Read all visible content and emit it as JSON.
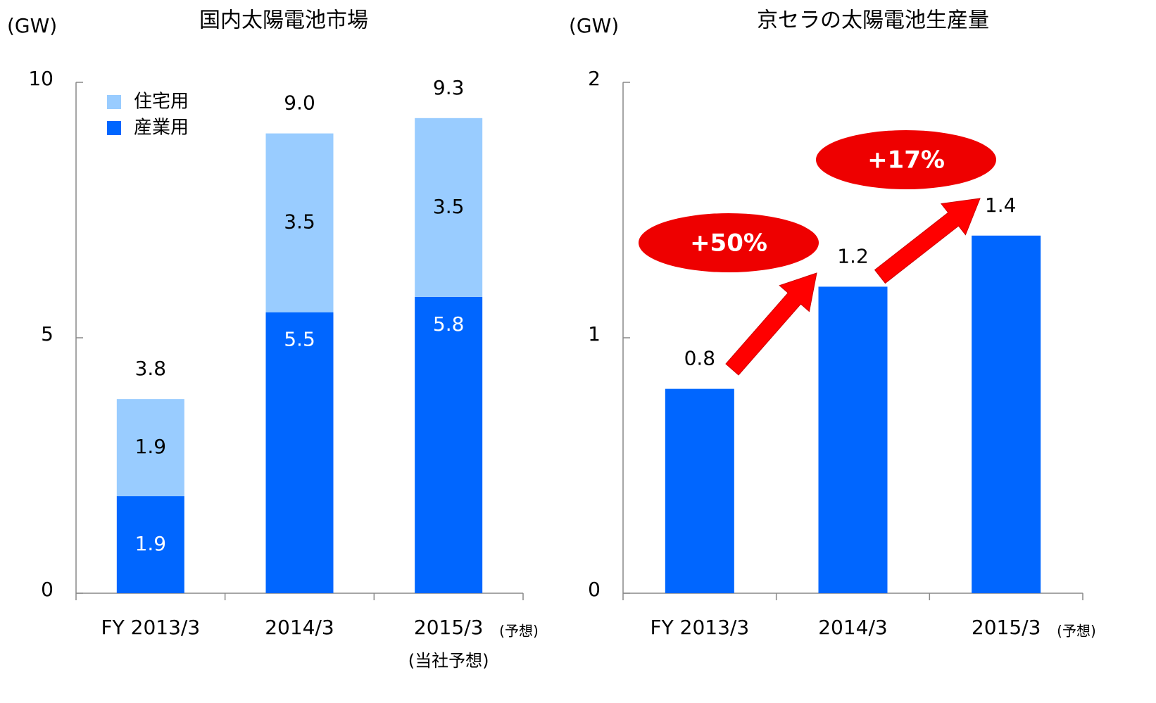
{
  "chart_data": [
    {
      "type": "stacked_bar",
      "title": "国内太陽電池市場",
      "unit_label": "(GW)",
      "categories": [
        "FY 2013/3",
        "2014/3",
        "2015/3"
      ],
      "category_notes": [
        "(予想)",
        "(当社予想)"
      ],
      "series": [
        {
          "name": "産業用",
          "color": "#0066ff",
          "values": [
            1.9,
            5.5,
            5.8
          ]
        },
        {
          "name": "住宅用",
          "color": "#99ccff",
          "values": [
            1.9,
            3.5,
            3.5
          ]
        }
      ],
      "totals": [
        3.8,
        9.0,
        9.3
      ],
      "total_labels": [
        "3.8",
        "9.0",
        "9.3"
      ],
      "ylim": [
        0,
        10
      ],
      "yticks": [
        0,
        5,
        10
      ],
      "legend": "upper left"
    },
    {
      "type": "bar",
      "title": "京セラの太陽電池生産量",
      "unit_label": "(GW)",
      "categories": [
        "FY 2013/3",
        "2014/3",
        "2015/3"
      ],
      "category_notes": [
        "(予想)"
      ],
      "values": [
        0.8,
        1.2,
        1.4
      ],
      "color": "#0066ff",
      "ylim": [
        0,
        2
      ],
      "yticks": [
        0,
        1,
        2
      ],
      "annotations": [
        "+50%",
        "+17%"
      ]
    }
  ]
}
